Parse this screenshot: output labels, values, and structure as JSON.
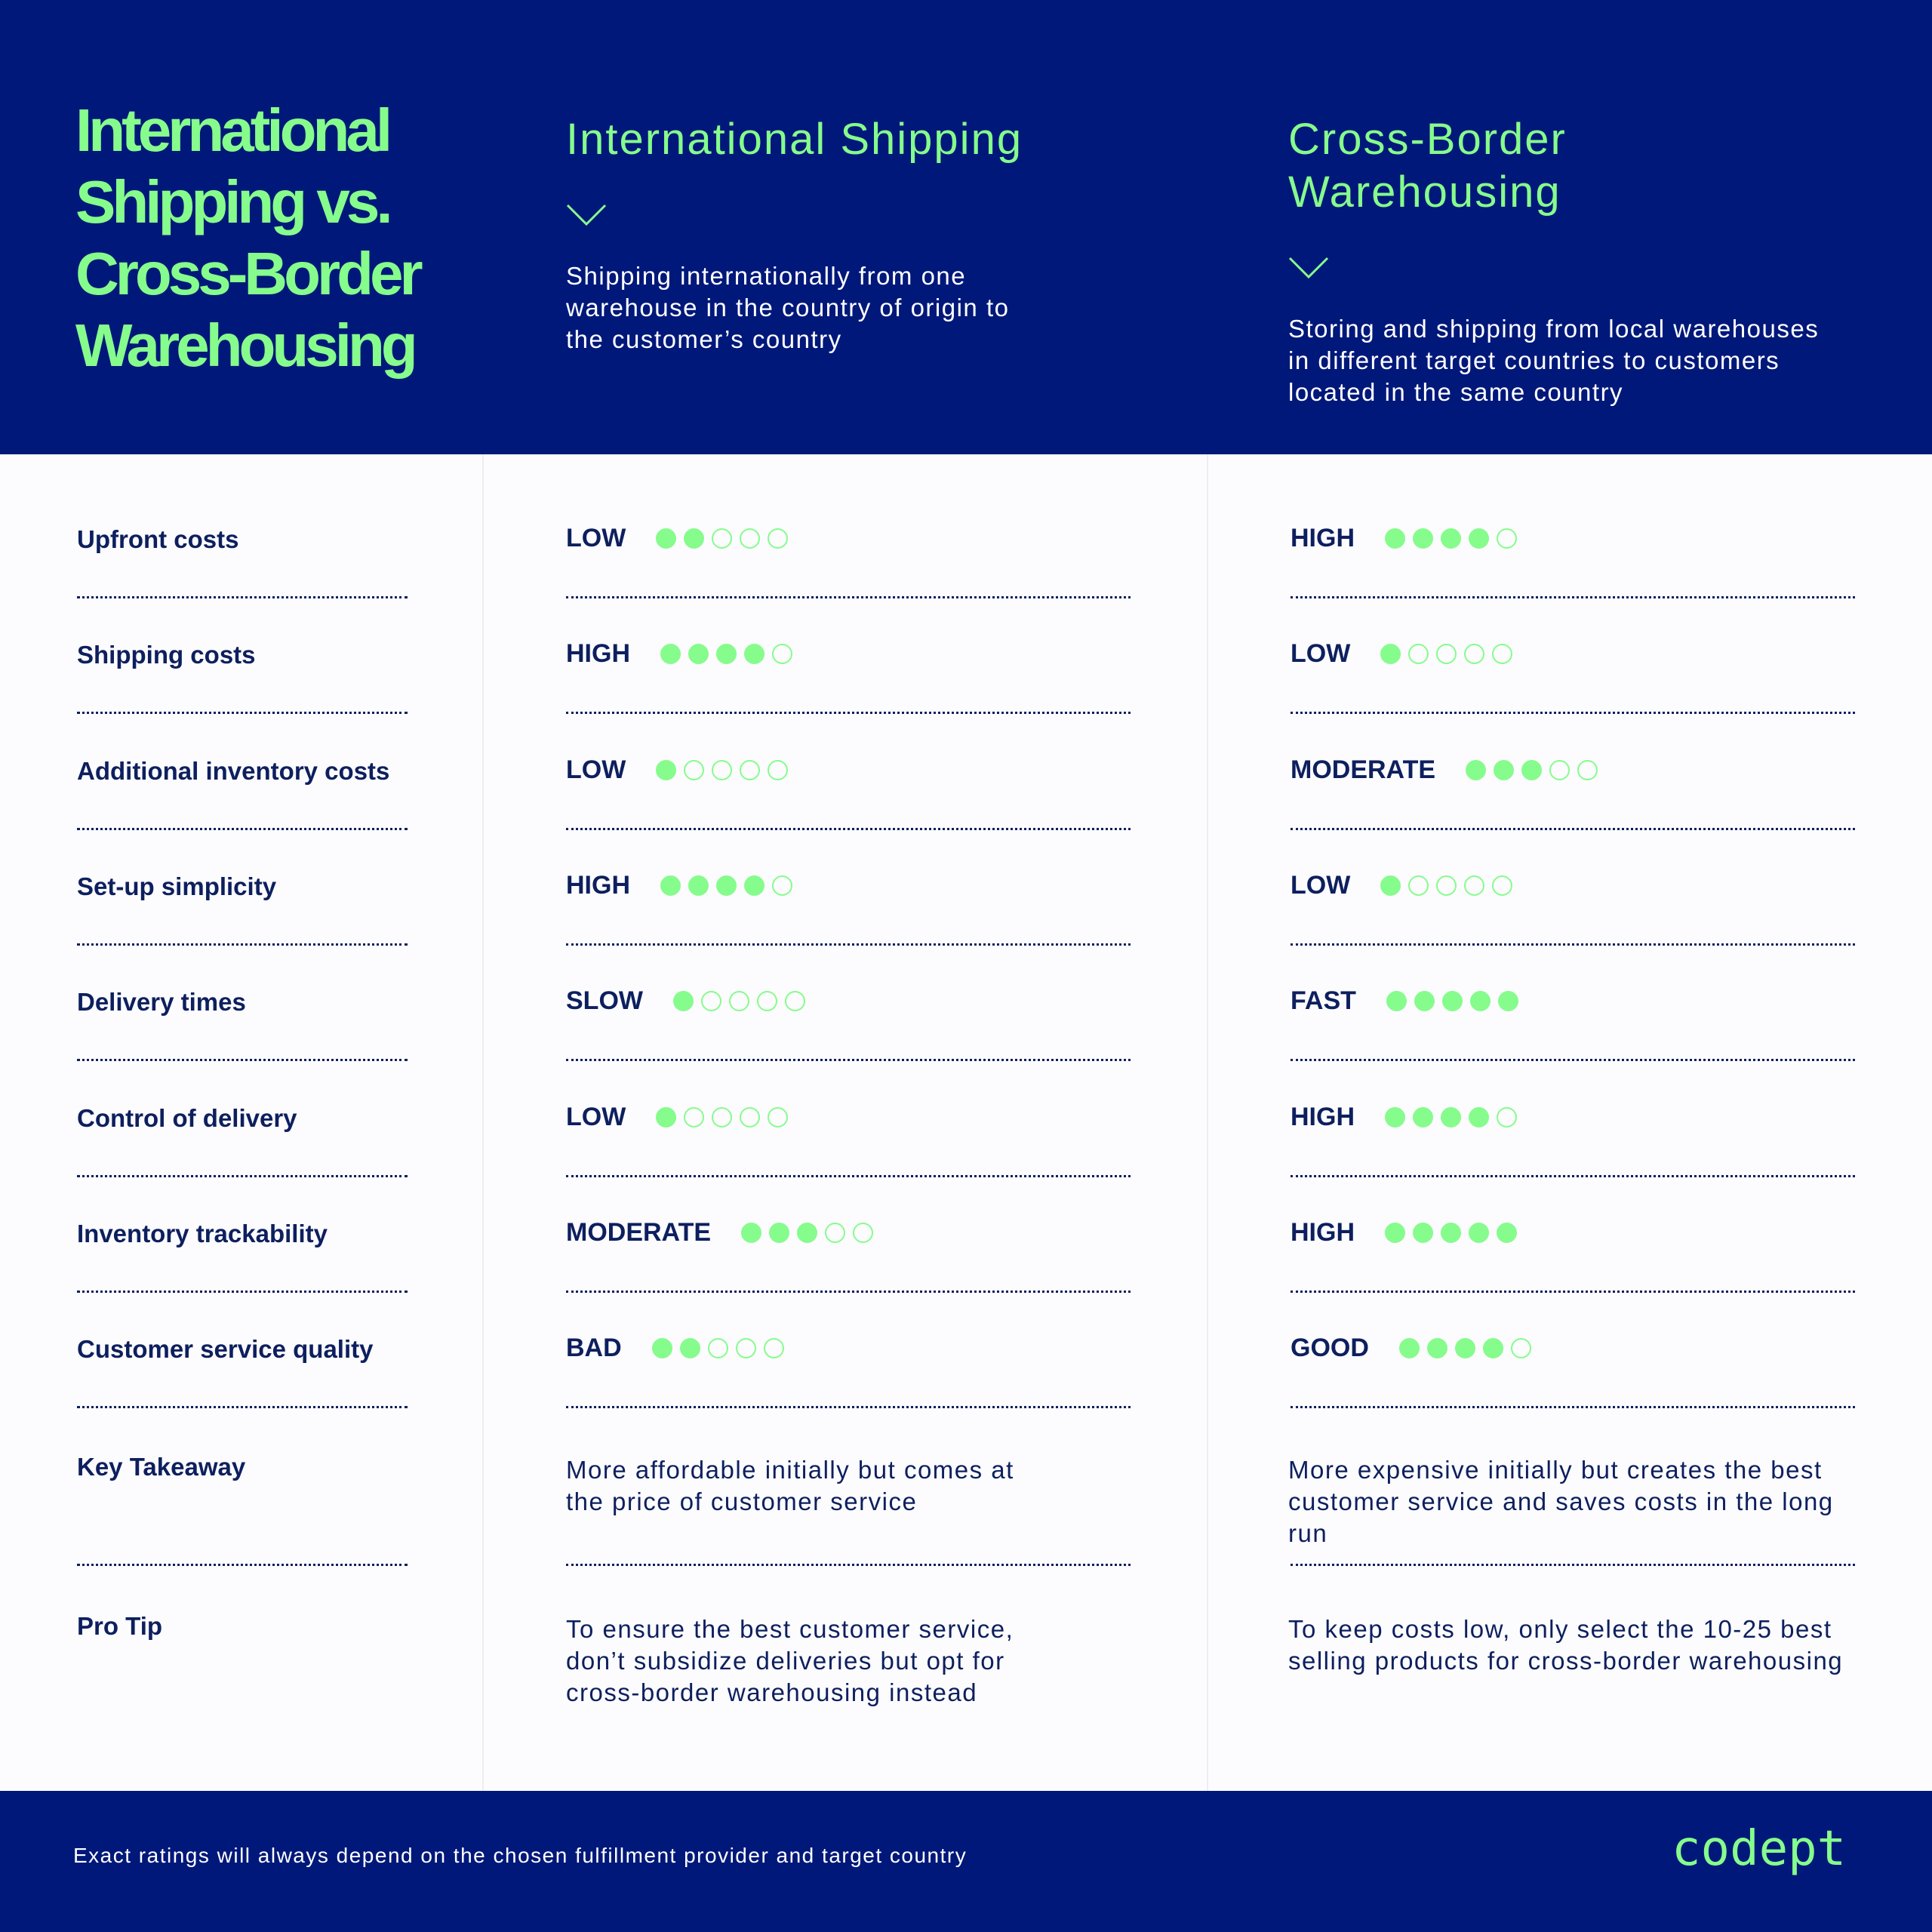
{
  "header": {
    "title": "International Shipping vs. Cross-Border Warehousing",
    "columns": [
      {
        "title": "International Shipping",
        "icon": "chevron-down-icon",
        "description": "Shipping internationally from one warehouse in the country of origin to the customer’s country"
      },
      {
        "title": "Cross-Border Warehousing",
        "icon": "chevron-down-icon",
        "description": "Storing and shipping from local warehouses in different target countries to customers located in the same country"
      }
    ]
  },
  "rows": [
    {
      "label": "Upfront costs",
      "a": {
        "level": "LOW",
        "dots": 2
      },
      "b": {
        "level": "HIGH",
        "dots": 4
      }
    },
    {
      "label": "Shipping costs",
      "a": {
        "level": "HIGH",
        "dots": 4
      },
      "b": {
        "level": "LOW",
        "dots": 1
      }
    },
    {
      "label": "Additional inventory costs",
      "a": {
        "level": "LOW",
        "dots": 1
      },
      "b": {
        "level": "MODERATE",
        "dots": 3
      }
    },
    {
      "label": "Set-up simplicity",
      "a": {
        "level": "HIGH",
        "dots": 4
      },
      "b": {
        "level": "LOW",
        "dots": 1
      }
    },
    {
      "label": "Delivery times",
      "a": {
        "level": "SLOW",
        "dots": 1
      },
      "b": {
        "level": "FAST",
        "dots": 5
      }
    },
    {
      "label": "Control of delivery",
      "a": {
        "level": "LOW",
        "dots": 1
      },
      "b": {
        "level": "HIGH",
        "dots": 4
      }
    },
    {
      "label": "Inventory trackability",
      "a": {
        "level": "MODERATE",
        "dots": 3
      },
      "b": {
        "level": "HIGH",
        "dots": 5
      }
    },
    {
      "label": "Customer service quality",
      "a": {
        "level": "BAD",
        "dots": 2
      },
      "b": {
        "level": "GOOD",
        "dots": 4
      }
    }
  ],
  "rating_max": 5,
  "key_takeaway": {
    "label": "Key Takeaway",
    "a": "More affordable initially but comes at the price of customer service",
    "b": "More expensive initially but creates the best customer service and saves costs in the long run"
  },
  "pro_tip": {
    "label": "Pro Tip",
    "a": "To ensure the best customer service, don’t subsidize deliveries but opt for cross-border warehousing instead",
    "b": "To keep costs low, only select the 10-25 best selling products for cross-border warehousing"
  },
  "footer": {
    "note": "Exact ratings will always depend on the chosen fulfillment provider and target country",
    "logo": "codept"
  },
  "colors": {
    "navy": "#00187a",
    "green": "#86fc8c",
    "text": "#0d1f5e"
  }
}
